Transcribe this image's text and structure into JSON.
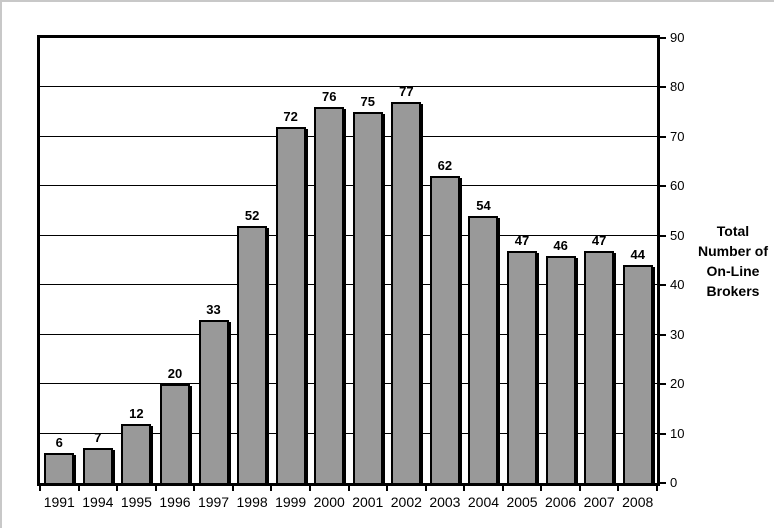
{
  "chart_data": {
    "type": "bar",
    "title": "",
    "xlabel": "",
    "ylabel": "Total Number of On-Line Brokers",
    "ylabel_lines": [
      "Total",
      "Number of",
      "On-Line",
      "Brokers"
    ],
    "categories": [
      "1991",
      "1994",
      "1995",
      "1996",
      "1997",
      "1998",
      "1999",
      "2000",
      "2001",
      "2002",
      "2003",
      "2004",
      "2005",
      "2006",
      "2007",
      "2008"
    ],
    "values": [
      6,
      7,
      12,
      20,
      33,
      52,
      72,
      76,
      75,
      77,
      62,
      54,
      47,
      46,
      47,
      44
    ],
    "ylim": [
      0,
      90
    ],
    "yticks": [
      90,
      80,
      70,
      60,
      50,
      40,
      30,
      20,
      10,
      0
    ],
    "grid": "horizontal",
    "legend": "none",
    "value_labels_shown": true,
    "axis_side": "right",
    "colors": {
      "bar_fill": "#999999",
      "bar_border": "#000000",
      "gridline": "#000000",
      "text": "#000000",
      "background": "#ffffff",
      "frame_edge": "#c8c8c8"
    }
  }
}
